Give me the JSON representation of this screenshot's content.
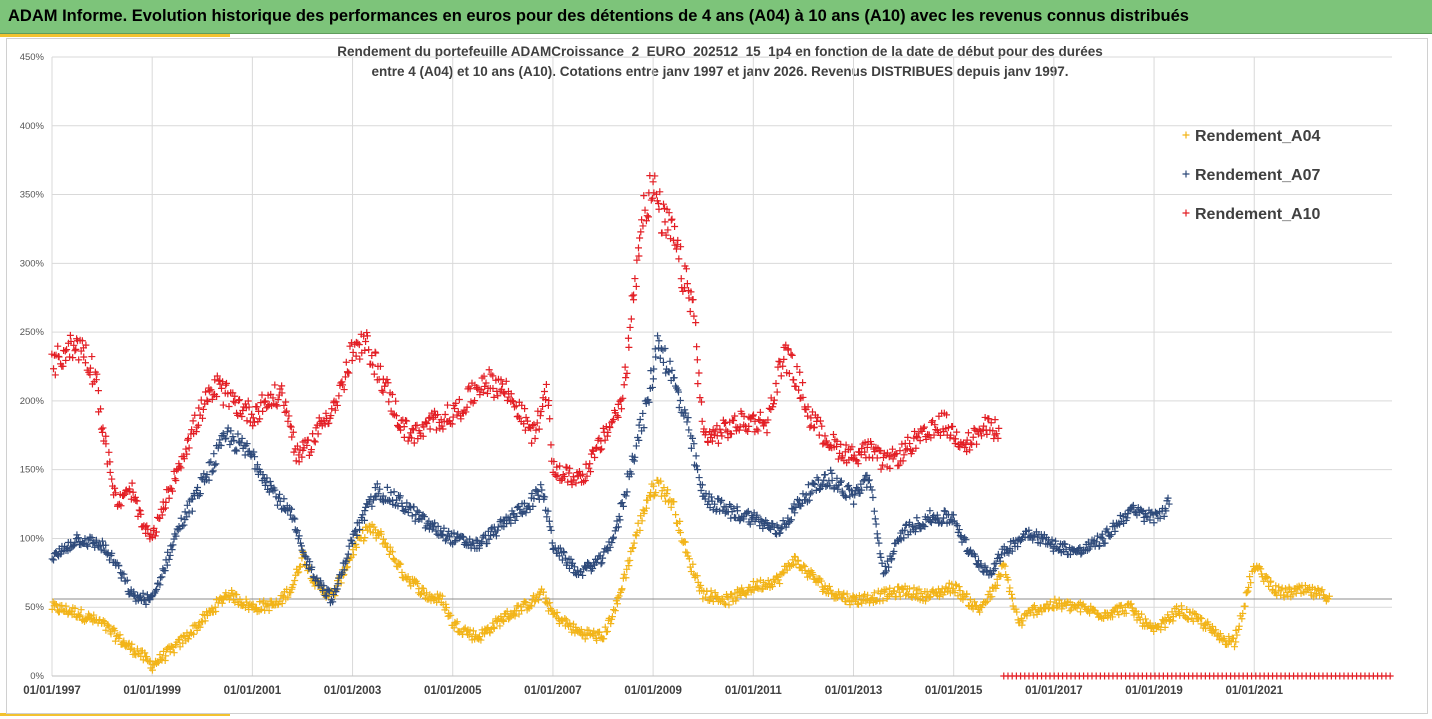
{
  "header": {
    "title": "ADAM Informe. Evolution historique des performances en euros pour des détentions de 4 ans (A04) à 10 ans (A10) avec les revenus connus distribués",
    "background": "#7dc47a"
  },
  "chart_data": {
    "type": "scatter",
    "title_line1": "Rendement du portefeuille ADAMCroissance_2_EURO_202512_15_1p4  en fonction de la date de début pour des durées",
    "title_line2": "entre 4 (A04) et 10 ans (A10). Cotations entre janv 1997 et janv 2026. Revenus DISTRIBUES depuis janv 1997.",
    "xlabel": "",
    "ylabel": "",
    "xlim": [
      1997.0,
      2023.75
    ],
    "ylim": [
      0,
      450
    ],
    "grid": true,
    "legend_position": "top-right",
    "y_ticks": [
      {
        "value": 0,
        "label": "0%"
      },
      {
        "value": 50,
        "label": "50%"
      },
      {
        "value": 100,
        "label": "100%"
      },
      {
        "value": 150,
        "label": "150%"
      },
      {
        "value": 200,
        "label": "200%"
      },
      {
        "value": 250,
        "label": "250%"
      },
      {
        "value": 300,
        "label": "300%"
      },
      {
        "value": 350,
        "label": "350%"
      },
      {
        "value": 400,
        "label": "400%"
      },
      {
        "value": 450,
        "label": "450%"
      }
    ],
    "x_ticks": [
      {
        "value": 1997,
        "label": "01/01/1997"
      },
      {
        "value": 1999,
        "label": "01/01/1999"
      },
      {
        "value": 2001,
        "label": "01/01/2001"
      },
      {
        "value": 2003,
        "label": "01/01/2003"
      },
      {
        "value": 2005,
        "label": "01/01/2005"
      },
      {
        "value": 2007,
        "label": "01/01/2007"
      },
      {
        "value": 2009,
        "label": "01/01/2009"
      },
      {
        "value": 2011,
        "label": "01/01/2011"
      },
      {
        "value": 2013,
        "label": "01/01/2013"
      },
      {
        "value": 2015,
        "label": "01/01/2015"
      },
      {
        "value": 2017,
        "label": "01/01/2017"
      },
      {
        "value": 2019,
        "label": "01/01/2019"
      },
      {
        "value": 2021,
        "label": "01/01/2021"
      }
    ],
    "reference_line": 56,
    "marker": "+",
    "series": [
      {
        "name": "Rendement_A04",
        "color": "#f2b418",
        "x": [
          1997.0,
          1997.5,
          1998.0,
          1998.5,
          1998.7,
          1999.0,
          1999.5,
          2000.0,
          2000.5,
          2001.0,
          2001.5,
          2001.8,
          2002.0,
          2002.3,
          2002.6,
          2003.0,
          2003.3,
          2003.6,
          2004.0,
          2004.5,
          2004.8,
          2005.0,
          2005.5,
          2006.0,
          2006.5,
          2006.8,
          2007.0,
          2007.5,
          2007.8,
          2008.0,
          2008.3,
          2008.6,
          2008.9,
          2009.1,
          2009.4,
          2009.7,
          2010.0,
          2010.5,
          2011.0,
          2011.5,
          2011.8,
          2012.0,
          2012.5,
          2013.0,
          2013.5,
          2014.0,
          2014.5,
          2015.0,
          2015.5,
          2015.8,
          2016.0,
          2016.3,
          2016.6,
          2017.0,
          2017.5,
          2018.0,
          2018.5,
          2019.0,
          2019.5,
          2020.0,
          2020.3,
          2020.6,
          2021.0,
          2021.5,
          2022.0,
          2022.5
        ],
        "values": [
          50,
          46,
          38,
          22,
          18,
          8,
          22,
          40,
          60,
          50,
          52,
          65,
          88,
          65,
          58,
          90,
          108,
          100,
          75,
          58,
          55,
          38,
          28,
          42,
          52,
          60,
          45,
          32,
          30,
          28,
          55,
          95,
          130,
          140,
          125,
          85,
          60,
          55,
          65,
          70,
          85,
          78,
          62,
          55,
          58,
          62,
          58,
          65,
          48,
          62,
          80,
          38,
          48,
          52,
          50,
          45,
          50,
          32,
          48,
          38,
          28,
          25,
          80,
          60,
          62,
          58
        ]
      },
      {
        "name": "Rendement_A07",
        "color": "#2e4a7a",
        "x": [
          1997.0,
          1997.5,
          1998.0,
          1998.3,
          1998.6,
          1999.0,
          1999.5,
          2000.0,
          2000.5,
          2001.0,
          2001.5,
          2001.8,
          2002.0,
          2002.3,
          2002.6,
          2003.0,
          2003.5,
          2004.0,
          2004.5,
          2005.0,
          2005.5,
          2006.0,
          2006.5,
          2006.8,
          2007.0,
          2007.5,
          2008.0,
          2008.3,
          2008.6,
          2008.9,
          2009.1,
          2009.4,
          2009.7,
          2010.0,
          2010.5,
          2011.0,
          2011.5,
          2012.0,
          2012.5,
          2013.0,
          2013.3,
          2013.6,
          2014.0,
          2014.5,
          2015.0,
          2015.3,
          2015.7,
          2016.0,
          2016.5,
          2017.0,
          2017.5,
          2018.0,
          2018.5,
          2019.0,
          2019.3
        ],
        "values": [
          85,
          100,
          95,
          80,
          58,
          55,
          105,
          140,
          175,
          160,
          130,
          115,
          90,
          70,
          55,
          100,
          135,
          125,
          110,
          100,
          95,
          110,
          125,
          135,
          95,
          75,
          85,
          110,
          160,
          200,
          245,
          215,
          180,
          130,
          120,
          115,
          105,
          130,
          145,
          130,
          145,
          75,
          105,
          115,
          115,
          90,
          75,
          90,
          105,
          95,
          90,
          100,
          120,
          115,
          125
        ]
      },
      {
        "name": "Rendement_A10",
        "color": "#e31e24",
        "x": [
          1997.0,
          1997.3,
          1997.6,
          1997.9,
          1998.0,
          1998.3,
          1998.6,
          1998.8,
          1999.0,
          1999.3,
          1999.6,
          2000.0,
          2000.3,
          2000.6,
          2001.0,
          2001.3,
          2001.6,
          2001.9,
          2002.1,
          2002.4,
          2002.7,
          2003.0,
          2003.3,
          2003.6,
          2004.0,
          2004.3,
          2004.6,
          2005.0,
          2005.3,
          2005.6,
          2006.0,
          2006.3,
          2006.6,
          2006.9,
          2007.0,
          2007.3,
          2007.6,
          2007.9,
          2008.1,
          2008.4,
          2008.6,
          2008.8,
          2009.0,
          2009.2,
          2009.4,
          2009.6,
          2009.8,
          2010.0,
          2010.2,
          2010.5,
          2010.8,
          2011.0,
          2011.3,
          2011.6,
          2011.9,
          2012.1,
          2012.4,
          2012.7,
          2013.0,
          2013.3,
          2013.6,
          2013.9,
          2014.2,
          2014.5,
          2014.8,
          2015.0,
          2015.3,
          2015.6,
          2015.9
        ],
        "values": [
          225,
          238,
          240,
          215,
          180,
          125,
          135,
          110,
          100,
          130,
          160,
          195,
          210,
          200,
          190,
          200,
          205,
          160,
          165,
          185,
          200,
          235,
          240,
          215,
          180,
          175,
          185,
          190,
          200,
          215,
          210,
          195,
          175,
          205,
          150,
          145,
          145,
          165,
          180,
          200,
          275,
          340,
          355,
          330,
          320,
          290,
          270,
          175,
          175,
          180,
          185,
          185,
          185,
          235,
          215,
          190,
          175,
          165,
          160,
          165,
          155,
          160,
          170,
          175,
          185,
          175,
          170,
          180,
          180
        ]
      }
    ],
    "zero_line_markers": {
      "color": "#e31e24",
      "value": 0,
      "x_start": 2016.0,
      "x_end": 2023.75
    }
  }
}
